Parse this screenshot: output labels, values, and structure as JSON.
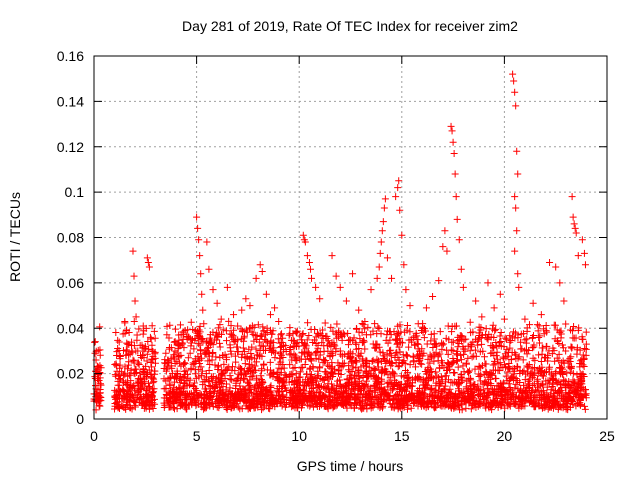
{
  "chart_data": {
    "type": "scatter",
    "title": "Day 281 of 2019, Rate Of TEC Index for receiver zim2",
    "xlabel": "GPS time / hours",
    "ylabel": "ROTI / TECUs",
    "xlim": [
      0,
      25
    ],
    "ylim": [
      0,
      0.16
    ],
    "x_ticks": [
      "0",
      "5",
      "10",
      "15",
      "20",
      "25"
    ],
    "y_ticks": [
      "0",
      "0.02",
      "0.04",
      "0.06",
      "0.08",
      "0.1",
      "0.12",
      "0.14",
      "0.16"
    ],
    "grid": true,
    "legend": "none",
    "marker": "plus",
    "color": "#ff0000",
    "points": [
      [
        0.05,
        0.029
      ],
      [
        0.1,
        0.026
      ],
      [
        0.15,
        0.022
      ],
      [
        0.2,
        0.017
      ],
      [
        0.05,
        0.011
      ],
      [
        0.15,
        0.008
      ],
      [
        0.25,
        0.006
      ],
      [
        0.1,
        0.004
      ],
      [
        0.3,
        0.013
      ],
      [
        1.1,
        0.028
      ],
      [
        1.2,
        0.019
      ],
      [
        1.3,
        0.012
      ],
      [
        1.4,
        0.009
      ],
      [
        1.5,
        0.043
      ],
      [
        1.6,
        0.015
      ],
      [
        1.8,
        0.011
      ],
      [
        1.9,
        0.074
      ],
      [
        1.95,
        0.063
      ],
      [
        2.0,
        0.052
      ],
      [
        2.05,
        0.045
      ],
      [
        2.1,
        0.037
      ],
      [
        2.2,
        0.024
      ],
      [
        2.3,
        0.013
      ],
      [
        2.4,
        0.041
      ],
      [
        2.5,
        0.032
      ],
      [
        2.6,
        0.071
      ],
      [
        2.65,
        0.069
      ],
      [
        2.7,
        0.067
      ],
      [
        2.75,
        0.036
      ],
      [
        2.8,
        0.018
      ],
      [
        2.9,
        0.012
      ],
      [
        3.5,
        0.029
      ],
      [
        3.7,
        0.018
      ],
      [
        3.9,
        0.011
      ],
      [
        4.0,
        0.008
      ],
      [
        4.2,
        0.016
      ],
      [
        4.4,
        0.021
      ],
      [
        4.6,
        0.027
      ],
      [
        4.8,
        0.035
      ],
      [
        5.0,
        0.089
      ],
      [
        5.05,
        0.084
      ],
      [
        5.1,
        0.079
      ],
      [
        5.15,
        0.072
      ],
      [
        5.2,
        0.064
      ],
      [
        5.25,
        0.055
      ],
      [
        5.3,
        0.048
      ],
      [
        5.35,
        0.042
      ],
      [
        5.4,
        0.03
      ],
      [
        5.5,
        0.078
      ],
      [
        5.6,
        0.066
      ],
      [
        5.8,
        0.057
      ],
      [
        6.0,
        0.051
      ],
      [
        6.2,
        0.044
      ],
      [
        6.5,
        0.058
      ],
      [
        6.8,
        0.046
      ],
      [
        7.0,
        0.041
      ],
      [
        7.2,
        0.048
      ],
      [
        7.4,
        0.053
      ],
      [
        7.6,
        0.05
      ],
      [
        7.9,
        0.062
      ],
      [
        8.1,
        0.068
      ],
      [
        8.2,
        0.065
      ],
      [
        8.4,
        0.055
      ],
      [
        8.6,
        0.046
      ],
      [
        8.8,
        0.049
      ],
      [
        9.0,
        0.043
      ],
      [
        9.2,
        0.024
      ],
      [
        10.2,
        0.081
      ],
      [
        10.25,
        0.079
      ],
      [
        10.3,
        0.078
      ],
      [
        10.4,
        0.072
      ],
      [
        10.5,
        0.069
      ],
      [
        10.55,
        0.066
      ],
      [
        10.6,
        0.062
      ],
      [
        10.8,
        0.058
      ],
      [
        11.0,
        0.053
      ],
      [
        11.6,
        0.072
      ],
      [
        11.8,
        0.063
      ],
      [
        12.0,
        0.058
      ],
      [
        12.3,
        0.052
      ],
      [
        12.6,
        0.064
      ],
      [
        12.9,
        0.048
      ],
      [
        13.2,
        0.043
      ],
      [
        13.5,
        0.057
      ],
      [
        13.8,
        0.062
      ],
      [
        13.9,
        0.067
      ],
      [
        13.95,
        0.073
      ],
      [
        14.0,
        0.078
      ],
      [
        14.05,
        0.083
      ],
      [
        14.1,
        0.087
      ],
      [
        14.15,
        0.093
      ],
      [
        14.2,
        0.097
      ],
      [
        14.3,
        0.071
      ],
      [
        14.5,
        0.062
      ],
      [
        14.7,
        0.098
      ],
      [
        14.8,
        0.102
      ],
      [
        14.85,
        0.105
      ],
      [
        14.9,
        0.092
      ],
      [
        15.0,
        0.081
      ],
      [
        15.1,
        0.068
      ],
      [
        15.2,
        0.057
      ],
      [
        15.4,
        0.05
      ],
      [
        15.8,
        0.042
      ],
      [
        16.2,
        0.049
      ],
      [
        16.5,
        0.054
      ],
      [
        16.8,
        0.061
      ],
      [
        17.0,
        0.076
      ],
      [
        17.1,
        0.083
      ],
      [
        17.2,
        0.074
      ],
      [
        17.4,
        0.129
      ],
      [
        17.45,
        0.127
      ],
      [
        17.5,
        0.122
      ],
      [
        17.55,
        0.117
      ],
      [
        17.6,
        0.108
      ],
      [
        17.65,
        0.098
      ],
      [
        17.7,
        0.088
      ],
      [
        17.8,
        0.079
      ],
      [
        17.9,
        0.066
      ],
      [
        18.0,
        0.058
      ],
      [
        18.6,
        0.052
      ],
      [
        18.9,
        0.045
      ],
      [
        19.2,
        0.06
      ],
      [
        19.5,
        0.049
      ],
      [
        19.8,
        0.055
      ],
      [
        20.0,
        0.044
      ],
      [
        20.4,
        0.152
      ],
      [
        20.45,
        0.149
      ],
      [
        20.5,
        0.144
      ],
      [
        20.55,
        0.138
      ],
      [
        20.6,
        0.118
      ],
      [
        20.65,
        0.108
      ],
      [
        20.5,
        0.098
      ],
      [
        20.55,
        0.093
      ],
      [
        20.6,
        0.083
      ],
      [
        20.5,
        0.074
      ],
      [
        20.65,
        0.064
      ],
      [
        20.7,
        0.058
      ],
      [
        21.0,
        0.044
      ],
      [
        21.4,
        0.051
      ],
      [
        21.8,
        0.046
      ],
      [
        22.2,
        0.069
      ],
      [
        22.5,
        0.067
      ],
      [
        22.7,
        0.06
      ],
      [
        22.9,
        0.052
      ],
      [
        23.3,
        0.098
      ],
      [
        23.35,
        0.089
      ],
      [
        23.4,
        0.086
      ],
      [
        23.45,
        0.084
      ],
      [
        23.5,
        0.082
      ],
      [
        23.6,
        0.072
      ],
      [
        23.8,
        0.079
      ],
      [
        23.9,
        0.073
      ],
      [
        23.95,
        0.068
      ]
    ]
  }
}
